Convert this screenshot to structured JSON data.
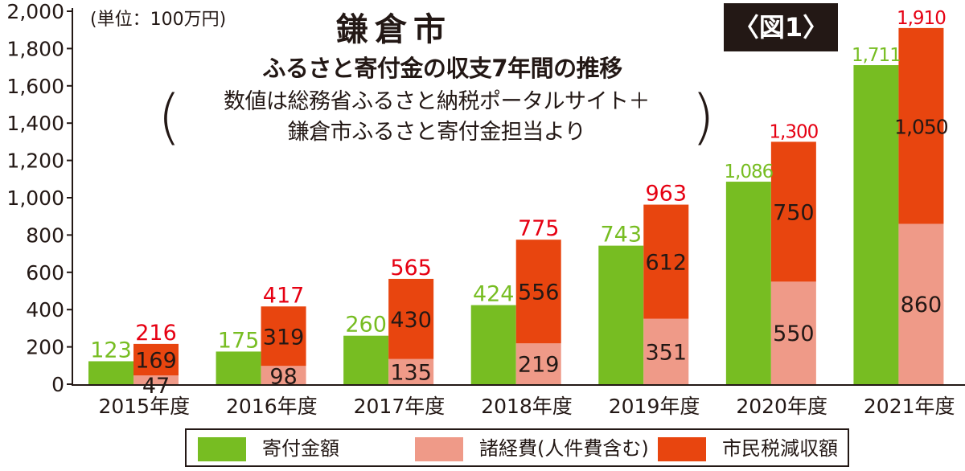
{
  "header": {
    "unit_label": "(単位：100万円)",
    "title": "鎌倉市",
    "subtitle": "ふるさと寄付金の収支7年間の推移",
    "source_line1": "数値は総務省ふるさと納税ポータルサイト＋",
    "source_line2": "鎌倉市ふるさと寄付金担当より",
    "paren_left": "(",
    "paren_right": ")",
    "figure_badge": "〈図1〉"
  },
  "colors": {
    "donations": "#77bd22",
    "expenses": "#ef9a88",
    "tax_loss": "#e8450f",
    "total_label": "#e60012",
    "donation_label": "#77bd22",
    "text": "#231815"
  },
  "legend": {
    "items": [
      {
        "label": "寄付金額",
        "color": "#77bd22"
      },
      {
        "label": "諸経費(人件費含む)",
        "color": "#ef9a88"
      },
      {
        "label": "市民税減収額",
        "color": "#e8450f"
      }
    ]
  },
  "chart_data": {
    "type": "bar",
    "categories": [
      "2015年度",
      "2016年度",
      "2017年度",
      "2018年度",
      "2019年度",
      "2020年度",
      "2021年度"
    ],
    "series": [
      {
        "name": "寄付金額",
        "stack": "donations",
        "values": [
          123,
          175,
          260,
          424,
          743,
          1086,
          1711
        ]
      },
      {
        "name": "諸経費(人件費含む)",
        "stack": "costs",
        "values": [
          47,
          98,
          135,
          219,
          351,
          550,
          860
        ]
      },
      {
        "name": "市民税減収額",
        "stack": "costs",
        "values": [
          169,
          319,
          430,
          556,
          612,
          750,
          1050
        ]
      }
    ],
    "donation_labels": [
      "123",
      "175",
      "260",
      "424",
      "743",
      "1,086",
      "1,711"
    ],
    "expense_labels": [
      "47",
      "98",
      "135",
      "219",
      "351",
      "550",
      "860"
    ],
    "tax_labels": [
      "169",
      "319",
      "430",
      "556",
      "612",
      "750",
      "1,050"
    ],
    "cost_totals": [
      216,
      417,
      565,
      775,
      963,
      1300,
      1910
    ],
    "cost_total_labels": [
      "216",
      "417",
      "565",
      "775",
      "963",
      "1,300",
      "1,910"
    ],
    "yticks": [
      0,
      200,
      400,
      600,
      800,
      1000,
      1200,
      1400,
      1600,
      1800,
      2000
    ],
    "ytick_labels": [
      "0",
      "200",
      "400",
      "600",
      "800",
      "1,000",
      "1,200",
      "1,400",
      "1,600",
      "1,800",
      "2,000"
    ],
    "ylim": [
      0,
      2000
    ],
    "grid": false,
    "legend_position": "bottom"
  }
}
